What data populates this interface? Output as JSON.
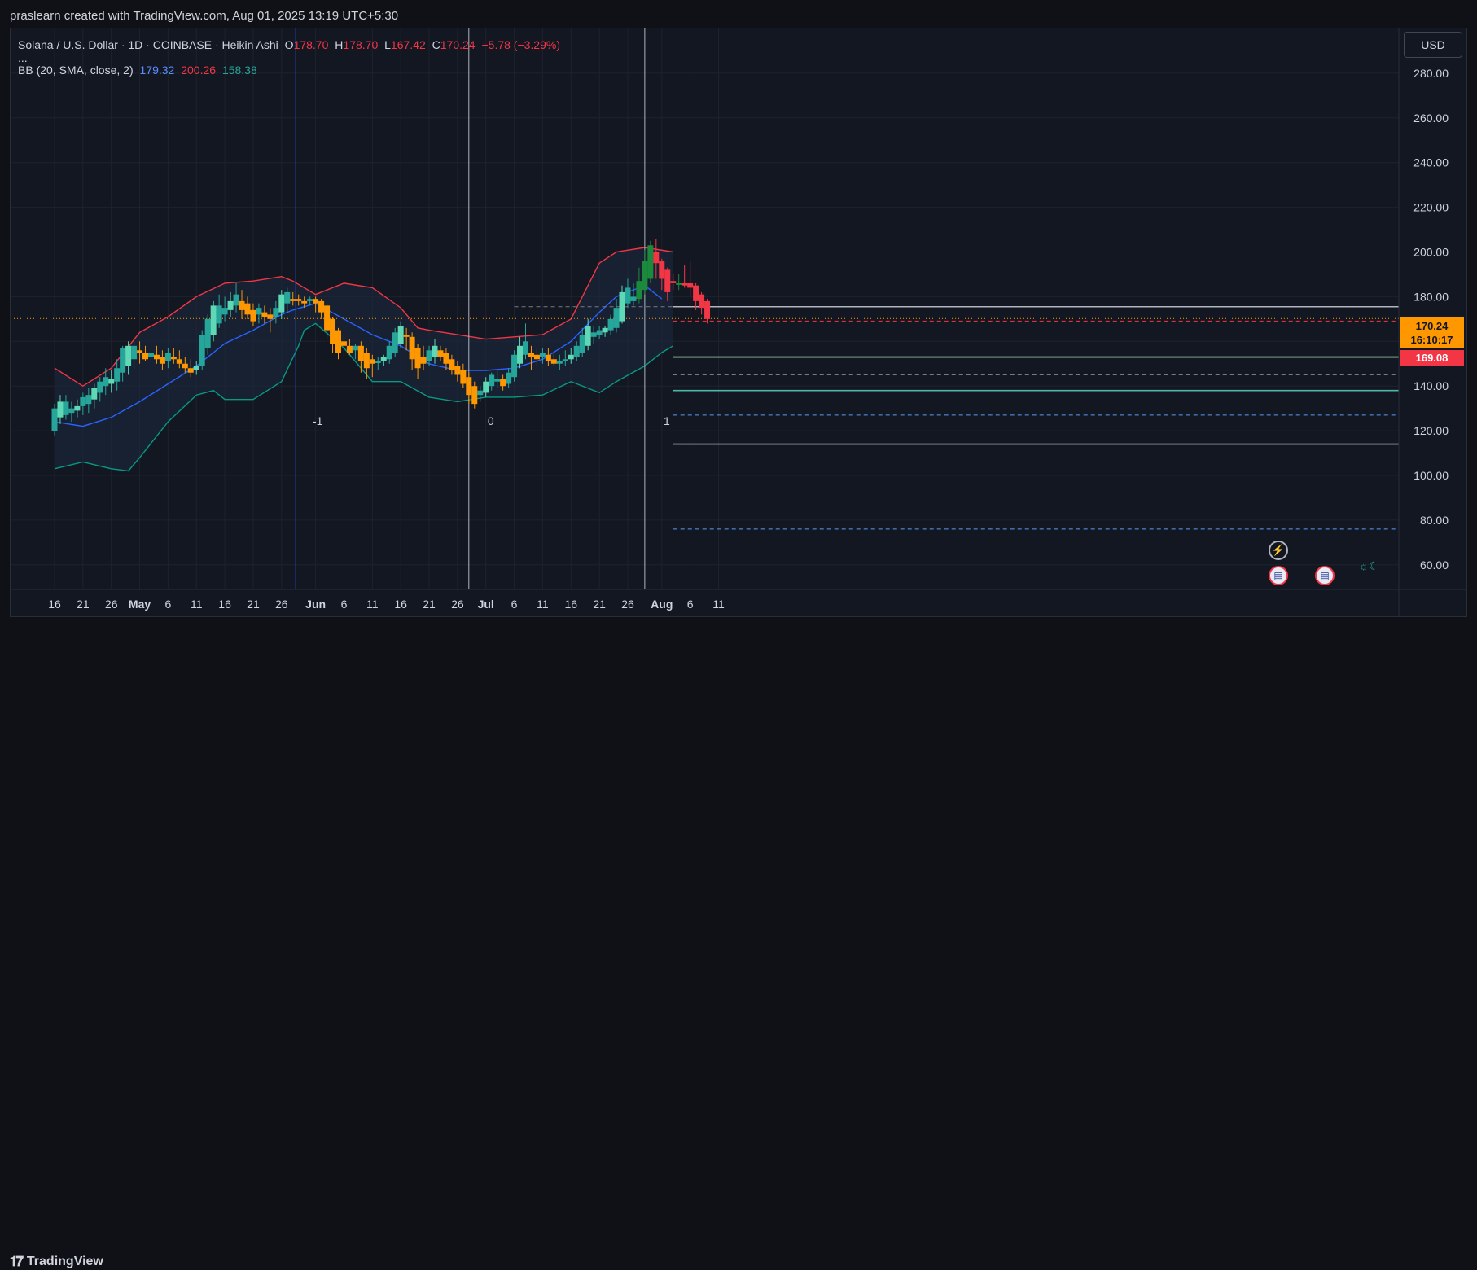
{
  "attribution": "praslearn created with TradingView.com, Aug 01, 2025 13:19 UTC+5:30",
  "legend": {
    "symbol": "Solana / U.S. Dollar · 1D · COINBASE · Heikin Ashi",
    "open_label": "O",
    "open": "178.70",
    "high_label": "H",
    "high": "178.70",
    "low_label": "L",
    "low": "167.42",
    "close_label": "C",
    "close": "170.24",
    "change": "−5.78 (−3.29%)",
    "more": "...",
    "bb_label": "BB (20, SMA, close, 2)",
    "bb_basis": "179.32",
    "bb_upper": "200.26",
    "bb_lower": "158.38"
  },
  "currency_button": "USD",
  "price_tag": {
    "price": "170.24",
    "countdown": "16:10:17"
  },
  "level_tag": "169.08",
  "footer_logo": "TradingView",
  "icons": {
    "lightning": "lightning-icon",
    "flag": "us-flag-icon",
    "sun": "sun-moon-icon"
  },
  "colors": {
    "background": "#131722",
    "up": "#26a69a",
    "down": "#f23645",
    "ha_up_light": "#5fd9b5",
    "ha_down_orange": "#ff9800",
    "bb_basis": "#2962ff",
    "bb_upper": "#f23645",
    "bb_lower": "#089981",
    "bb_fill": "#1c2a40",
    "vline_blue": "#2962ff",
    "vline_gray": "#b2b5be"
  },
  "chart_data": {
    "type": "candlestick",
    "title": "Solana / U.S. Dollar · 1D · COINBASE · Heikin Ashi",
    "ylabel": "USD",
    "ylim": [
      49,
      300
    ],
    "y_ticks": [
      "60.00",
      "80.00",
      "100.00",
      "120.00",
      "140.00",
      "160.00",
      "180.00",
      "200.00",
      "220.00",
      "240.00",
      "260.00",
      "280.00"
    ],
    "x_ticks": [
      {
        "label": "16",
        "day": 0,
        "bold": false
      },
      {
        "label": "21",
        "day": 5,
        "bold": false
      },
      {
        "label": "26",
        "day": 10,
        "bold": false
      },
      {
        "label": "May",
        "day": 15,
        "bold": true
      },
      {
        "label": "6",
        "day": 20,
        "bold": false
      },
      {
        "label": "11",
        "day": 25,
        "bold": false
      },
      {
        "label": "16",
        "day": 30,
        "bold": false
      },
      {
        "label": "21",
        "day": 35,
        "bold": false
      },
      {
        "label": "26",
        "day": 40,
        "bold": false
      },
      {
        "label": "Jun",
        "day": 46,
        "bold": true
      },
      {
        "label": "6",
        "day": 51,
        "bold": false
      },
      {
        "label": "11",
        "day": 56,
        "bold": false
      },
      {
        "label": "16",
        "day": 61,
        "bold": false
      },
      {
        "label": "21",
        "day": 66,
        "bold": false
      },
      {
        "label": "26",
        "day": 71,
        "bold": false
      },
      {
        "label": "Jul",
        "day": 76,
        "bold": true
      },
      {
        "label": "6",
        "day": 81,
        "bold": false
      },
      {
        "label": "11",
        "day": 86,
        "bold": false
      },
      {
        "label": "16",
        "day": 91,
        "bold": false
      },
      {
        "label": "21",
        "day": 96,
        "bold": false
      },
      {
        "label": "26",
        "day": 101,
        "bold": false
      },
      {
        "label": "Aug",
        "day": 107,
        "bold": true
      },
      {
        "label": "6",
        "day": 112,
        "bold": false
      },
      {
        "label": "11",
        "day": 117,
        "bold": false
      }
    ],
    "candles": [
      {
        "o": 120,
        "h": 132,
        "l": 118,
        "c": 130
      },
      {
        "o": 126,
        "h": 136,
        "l": 123,
        "c": 133
      },
      {
        "o": 127,
        "h": 136,
        "l": 125,
        "c": 133
      },
      {
        "o": 128,
        "h": 133,
        "l": 124,
        "c": 130
      },
      {
        "o": 129,
        "h": 134,
        "l": 126,
        "c": 131
      },
      {
        "o": 131,
        "h": 137,
        "l": 127,
        "c": 135
      },
      {
        "o": 132,
        "h": 139,
        "l": 128,
        "c": 136
      },
      {
        "o": 134,
        "h": 141,
        "l": 130,
        "c": 139
      },
      {
        "o": 137,
        "h": 144,
        "l": 133,
        "c": 142
      },
      {
        "o": 140,
        "h": 148,
        "l": 136,
        "c": 144
      },
      {
        "o": 141,
        "h": 147,
        "l": 137,
        "c": 143
      },
      {
        "o": 142,
        "h": 152,
        "l": 138,
        "c": 148
      },
      {
        "o": 146,
        "h": 158,
        "l": 142,
        "c": 157
      },
      {
        "o": 149,
        "h": 160,
        "l": 145,
        "c": 158
      },
      {
        "o": 152,
        "h": 162,
        "l": 148,
        "c": 158
      },
      {
        "o": 156,
        "h": 160,
        "l": 150,
        "c": 155
      },
      {
        "o": 155,
        "h": 158,
        "l": 151,
        "c": 152
      },
      {
        "o": 153,
        "h": 157,
        "l": 149,
        "c": 155
      },
      {
        "o": 154,
        "h": 158,
        "l": 150,
        "c": 152
      },
      {
        "o": 153,
        "h": 156,
        "l": 147,
        "c": 150
      },
      {
        "o": 151,
        "h": 157,
        "l": 148,
        "c": 155
      },
      {
        "o": 153,
        "h": 157,
        "l": 150,
        "c": 152
      },
      {
        "o": 152,
        "h": 156,
        "l": 148,
        "c": 150
      },
      {
        "o": 150,
        "h": 153,
        "l": 146,
        "c": 148
      },
      {
        "o": 148,
        "h": 152,
        "l": 144,
        "c": 146
      },
      {
        "o": 147,
        "h": 151,
        "l": 145,
        "c": 149
      },
      {
        "o": 149,
        "h": 165,
        "l": 147,
        "c": 163
      },
      {
        "o": 157,
        "h": 172,
        "l": 154,
        "c": 170
      },
      {
        "o": 163,
        "h": 178,
        "l": 160,
        "c": 176
      },
      {
        "o": 168,
        "h": 181,
        "l": 166,
        "c": 176
      },
      {
        "o": 172,
        "h": 180,
        "l": 169,
        "c": 175
      },
      {
        "o": 174,
        "h": 182,
        "l": 171,
        "c": 178
      },
      {
        "o": 176,
        "h": 186,
        "l": 173,
        "c": 181
      },
      {
        "o": 178,
        "h": 183,
        "l": 170,
        "c": 174
      },
      {
        "o": 177,
        "h": 180,
        "l": 170,
        "c": 172
      },
      {
        "o": 174,
        "h": 177,
        "l": 167,
        "c": 169
      },
      {
        "o": 172,
        "h": 177,
        "l": 168,
        "c": 175
      },
      {
        "o": 173,
        "h": 176,
        "l": 168,
        "c": 171
      },
      {
        "o": 172,
        "h": 175,
        "l": 164,
        "c": 170
      },
      {
        "o": 171,
        "h": 178,
        "l": 168,
        "c": 175
      },
      {
        "o": 173,
        "h": 183,
        "l": 170,
        "c": 181
      },
      {
        "o": 177,
        "h": 184,
        "l": 173,
        "c": 182
      },
      {
        "o": 179,
        "h": 182,
        "l": 176,
        "c": 178
      },
      {
        "o": 179,
        "h": 181,
        "l": 176,
        "c": 178
      },
      {
        "o": 178,
        "h": 180,
        "l": 175,
        "c": 177
      },
      {
        "o": 178,
        "h": 180,
        "l": 176,
        "c": 179
      },
      {
        "o": 179,
        "h": 180,
        "l": 173,
        "c": 177
      },
      {
        "o": 178,
        "h": 179,
        "l": 170,
        "c": 173
      },
      {
        "o": 176,
        "h": 177,
        "l": 161,
        "c": 165
      },
      {
        "o": 170,
        "h": 171,
        "l": 155,
        "c": 159
      },
      {
        "o": 165,
        "h": 166,
        "l": 152,
        "c": 155
      },
      {
        "o": 160,
        "h": 163,
        "l": 153,
        "c": 158
      },
      {
        "o": 158,
        "h": 161,
        "l": 154,
        "c": 155
      },
      {
        "o": 156,
        "h": 159,
        "l": 152,
        "c": 158
      },
      {
        "o": 158,
        "h": 160,
        "l": 146,
        "c": 151
      },
      {
        "o": 155,
        "h": 157,
        "l": 143,
        "c": 148
      },
      {
        "o": 152,
        "h": 154,
        "l": 144,
        "c": 150
      },
      {
        "o": 151,
        "h": 153,
        "l": 147,
        "c": 151
      },
      {
        "o": 151,
        "h": 154,
        "l": 149,
        "c": 153
      },
      {
        "o": 152,
        "h": 160,
        "l": 150,
        "c": 158
      },
      {
        "o": 155,
        "h": 166,
        "l": 153,
        "c": 164
      },
      {
        "o": 159,
        "h": 169,
        "l": 157,
        "c": 167
      },
      {
        "o": 163,
        "h": 166,
        "l": 156,
        "c": 162
      },
      {
        "o": 162,
        "h": 164,
        "l": 147,
        "c": 152
      },
      {
        "o": 157,
        "h": 159,
        "l": 143,
        "c": 148
      },
      {
        "o": 153,
        "h": 158,
        "l": 147,
        "c": 150
      },
      {
        "o": 151,
        "h": 158,
        "l": 149,
        "c": 156
      },
      {
        "o": 153,
        "h": 161,
        "l": 150,
        "c": 158
      },
      {
        "o": 156,
        "h": 158,
        "l": 151,
        "c": 153
      },
      {
        "o": 155,
        "h": 157,
        "l": 147,
        "c": 150
      },
      {
        "o": 152,
        "h": 154,
        "l": 145,
        "c": 147
      },
      {
        "o": 149,
        "h": 151,
        "l": 142,
        "c": 145
      },
      {
        "o": 147,
        "h": 150,
        "l": 139,
        "c": 141
      },
      {
        "o": 144,
        "h": 146,
        "l": 132,
        "c": 136
      },
      {
        "o": 140,
        "h": 142,
        "l": 130,
        "c": 132
      },
      {
        "o": 136,
        "h": 140,
        "l": 133,
        "c": 138
      },
      {
        "o": 137,
        "h": 144,
        "l": 135,
        "c": 142
      },
      {
        "o": 140,
        "h": 146,
        "l": 138,
        "c": 145
      },
      {
        "o": 142,
        "h": 147,
        "l": 139,
        "c": 143
      },
      {
        "o": 143,
        "h": 145,
        "l": 138,
        "c": 140
      },
      {
        "o": 141,
        "h": 148,
        "l": 139,
        "c": 146
      },
      {
        "o": 144,
        "h": 156,
        "l": 142,
        "c": 154
      },
      {
        "o": 150,
        "h": 162,
        "l": 148,
        "c": 158
      },
      {
        "o": 154,
        "h": 168,
        "l": 152,
        "c": 160
      },
      {
        "o": 155,
        "h": 158,
        "l": 147,
        "c": 153
      },
      {
        "o": 154,
        "h": 157,
        "l": 149,
        "c": 152
      },
      {
        "o": 153,
        "h": 157,
        "l": 150,
        "c": 155
      },
      {
        "o": 154,
        "h": 157,
        "l": 149,
        "c": 151
      },
      {
        "o": 152,
        "h": 155,
        "l": 149,
        "c": 150
      },
      {
        "o": 150,
        "h": 154,
        "l": 147,
        "c": 151
      },
      {
        "o": 151,
        "h": 156,
        "l": 149,
        "c": 152
      },
      {
        "o": 152,
        "h": 157,
        "l": 150,
        "c": 154
      },
      {
        "o": 153,
        "h": 160,
        "l": 151,
        "c": 158
      },
      {
        "o": 155,
        "h": 166,
        "l": 153,
        "c": 163
      },
      {
        "o": 158,
        "h": 170,
        "l": 156,
        "c": 167
      },
      {
        "o": 162,
        "h": 167,
        "l": 159,
        "c": 164
      },
      {
        "o": 163,
        "h": 167,
        "l": 161,
        "c": 165
      },
      {
        "o": 164,
        "h": 167,
        "l": 162,
        "c": 166
      },
      {
        "o": 165,
        "h": 172,
        "l": 163,
        "c": 170
      },
      {
        "o": 166,
        "h": 179,
        "l": 164,
        "c": 175
      },
      {
        "o": 169,
        "h": 185,
        "l": 168,
        "c": 182
      },
      {
        "o": 177,
        "h": 188,
        "l": 175,
        "c": 184
      },
      {
        "o": 178,
        "h": 186,
        "l": 176,
        "c": 180
      },
      {
        "o": 179,
        "h": 193,
        "l": 177,
        "c": 187
      },
      {
        "o": 183,
        "h": 201,
        "l": 181,
        "c": 196
      },
      {
        "o": 188,
        "h": 205,
        "l": 186,
        "c": 203
      },
      {
        "o": 200,
        "h": 206,
        "l": 188,
        "c": 195
      },
      {
        "o": 196,
        "h": 197,
        "l": 183,
        "c": 188
      },
      {
        "o": 192,
        "h": 193,
        "l": 178,
        "c": 182
      },
      {
        "o": 187,
        "h": 190,
        "l": 183,
        "c": 186
      },
      {
        "o": 186,
        "h": 190,
        "l": 183,
        "c": 186
      },
      {
        "o": 186,
        "h": 194,
        "l": 184,
        "c": 185
      },
      {
        "o": 186,
        "h": 196,
        "l": 180,
        "c": 184
      },
      {
        "o": 185,
        "h": 186,
        "l": 174,
        "c": 178
      },
      {
        "o": 181,
        "h": 182,
        "l": 172,
        "c": 175
      },
      {
        "o": 178,
        "h": 179,
        "l": 168,
        "c": 170
      }
    ],
    "bb_upper": [
      [
        0,
        148
      ],
      [
        5,
        140
      ],
      [
        10,
        148
      ],
      [
        15,
        164
      ],
      [
        20,
        171
      ],
      [
        25,
        180
      ],
      [
        30,
        186
      ],
      [
        35,
        187
      ],
      [
        40,
        189
      ],
      [
        42,
        187
      ],
      [
        46,
        181
      ],
      [
        51,
        186
      ],
      [
        56,
        184
      ],
      [
        61,
        175
      ],
      [
        64,
        166
      ],
      [
        66,
        165
      ],
      [
        71,
        163
      ],
      [
        76,
        161
      ],
      [
        81,
        162
      ],
      [
        86,
        163
      ],
      [
        91,
        170
      ],
      [
        96,
        195
      ],
      [
        99,
        200
      ],
      [
        104,
        202
      ],
      [
        109,
        200
      ]
    ],
    "bb_basis": [
      [
        0,
        124
      ],
      [
        5,
        122
      ],
      [
        10,
        126
      ],
      [
        15,
        133
      ],
      [
        20,
        141
      ],
      [
        25,
        149
      ],
      [
        30,
        159
      ],
      [
        35,
        165
      ],
      [
        40,
        172
      ],
      [
        42,
        174
      ],
      [
        46,
        177
      ],
      [
        51,
        170
      ],
      [
        56,
        163
      ],
      [
        61,
        158
      ],
      [
        66,
        150
      ],
      [
        71,
        147
      ],
      [
        76,
        147
      ],
      [
        81,
        148
      ],
      [
        86,
        152
      ],
      [
        91,
        160
      ],
      [
        96,
        173
      ],
      [
        99,
        180
      ],
      [
        104,
        185
      ],
      [
        107,
        179
      ]
    ],
    "bb_lower": [
      [
        0,
        103
      ],
      [
        5,
        106
      ],
      [
        10,
        103
      ],
      [
        13,
        102
      ],
      [
        15,
        108
      ],
      [
        20,
        124
      ],
      [
        25,
        136
      ],
      [
        28,
        138
      ],
      [
        30,
        134
      ],
      [
        35,
        134
      ],
      [
        40,
        142
      ],
      [
        43,
        158
      ],
      [
        44,
        165
      ],
      [
        46,
        168
      ],
      [
        51,
        157
      ],
      [
        56,
        142
      ],
      [
        61,
        142
      ],
      [
        66,
        135
      ],
      [
        71,
        133
      ],
      [
        76,
        135
      ],
      [
        81,
        135
      ],
      [
        86,
        136
      ],
      [
        91,
        142
      ],
      [
        94,
        139
      ],
      [
        96,
        137
      ],
      [
        99,
        142
      ],
      [
        104,
        149
      ],
      [
        107,
        155
      ],
      [
        109,
        158
      ]
    ],
    "vertical_markers": [
      {
        "day": 42.5,
        "color": "#2962ff",
        "label": "-1"
      },
      {
        "day": 73,
        "color": "#b2b5be",
        "label": "0"
      },
      {
        "day": 104,
        "color": "#b2b5be",
        "label": "1"
      }
    ],
    "current_price": 170.24,
    "horizontal_levels": [
      {
        "y": 175.5,
        "color": "#787b86",
        "style": "dashed",
        "x_from_day": 81
      },
      {
        "y": 175.5,
        "color": "#b2b5be",
        "style": "solid"
      },
      {
        "y": 169.08,
        "color": "#f23645",
        "style": "dashed"
      },
      {
        "y": 153,
        "color": "#b9f6ca",
        "style": "solid"
      },
      {
        "y": 145,
        "color": "#787b86",
        "style": "dashed"
      },
      {
        "y": 138,
        "color": "#4db6ac",
        "style": "solid"
      },
      {
        "y": 127,
        "color": "#5b9cf6",
        "style": "dashed"
      },
      {
        "y": 114,
        "color": "#b2b5be",
        "style": "solid"
      },
      {
        "y": 76,
        "color": "#5b9cf6",
        "style": "dashed"
      }
    ]
  }
}
